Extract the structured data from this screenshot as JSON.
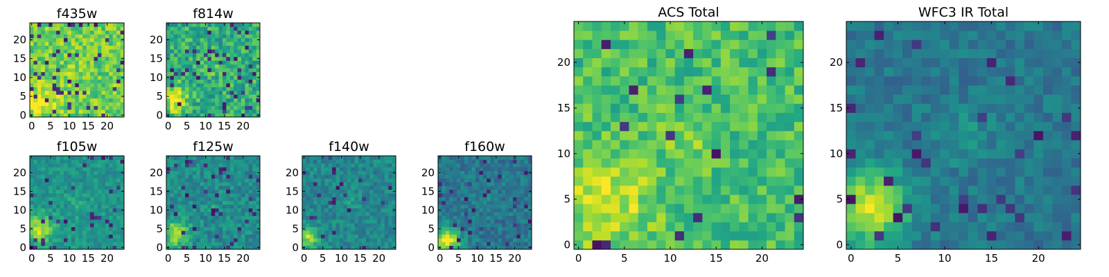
{
  "chart_data": [
    {
      "type": "heatmap",
      "title": "f435w",
      "xlim": [
        -0.5,
        24.5
      ],
      "ylim": [
        -0.5,
        24.5
      ],
      "xticks": [
        "0",
        "5",
        "10",
        "15",
        "20"
      ],
      "yticks": [
        "0",
        "5",
        "10",
        "15",
        "20"
      ],
      "colormap": "viridis",
      "grid": false
    },
    {
      "type": "heatmap",
      "title": "f814w",
      "xlim": [
        -0.5,
        24.5
      ],
      "ylim": [
        -0.5,
        24.5
      ],
      "xticks": [
        "0",
        "5",
        "10",
        "15",
        "20"
      ],
      "yticks": [
        "0",
        "5",
        "10",
        "15",
        "20"
      ],
      "colormap": "viridis",
      "grid": false
    },
    {
      "type": "heatmap",
      "title": "f105w",
      "xlim": [
        -0.5,
        24.5
      ],
      "ylim": [
        -0.5,
        24.5
      ],
      "xticks": [
        "0",
        "5",
        "10",
        "15",
        "20"
      ],
      "yticks": [
        "0",
        "5",
        "10",
        "15",
        "20"
      ],
      "colormap": "viridis",
      "grid": false
    },
    {
      "type": "heatmap",
      "title": "f125w",
      "xlim": [
        -0.5,
        24.5
      ],
      "ylim": [
        -0.5,
        24.5
      ],
      "xticks": [
        "0",
        "5",
        "10",
        "15",
        "20"
      ],
      "yticks": [
        "0",
        "5",
        "10",
        "15",
        "20"
      ],
      "colormap": "viridis",
      "grid": false
    },
    {
      "type": "heatmap",
      "title": "f140w",
      "xlim": [
        -0.5,
        24.5
      ],
      "ylim": [
        -0.5,
        24.5
      ],
      "xticks": [
        "0",
        "5",
        "10",
        "15",
        "20"
      ],
      "yticks": [
        "0",
        "5",
        "10",
        "15",
        "20"
      ],
      "colormap": "viridis",
      "grid": false
    },
    {
      "type": "heatmap",
      "title": "f160w",
      "xlim": [
        -0.5,
        24.5
      ],
      "ylim": [
        -0.5,
        24.5
      ],
      "xticks": [
        "0",
        "5",
        "10",
        "15",
        "20"
      ],
      "yticks": [
        "0",
        "5",
        "10",
        "15",
        "20"
      ],
      "colormap": "viridis",
      "grid": false
    },
    {
      "type": "heatmap",
      "title": "ACS Total",
      "xlim": [
        -0.5,
        24.5
      ],
      "ylim": [
        -0.5,
        24.5
      ],
      "xticks": [
        "0",
        "5",
        "10",
        "15",
        "20"
      ],
      "yticks": [
        "0",
        "5",
        "10",
        "15",
        "20"
      ],
      "colormap": "viridis",
      "grid": false
    },
    {
      "type": "heatmap",
      "title": "WFC3 IR Total",
      "xlim": [
        -0.5,
        24.5
      ],
      "ylim": [
        -0.5,
        24.5
      ],
      "xticks": [
        "0",
        "5",
        "10",
        "15",
        "20"
      ],
      "yticks": [
        "0",
        "5",
        "10",
        "15",
        "20"
      ],
      "colormap": "viridis",
      "grid": false
    }
  ]
}
